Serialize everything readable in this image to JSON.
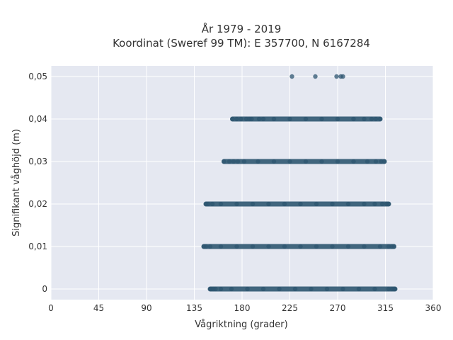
{
  "chart_data": {
    "type": "scatter",
    "title_line1": "År 1979 - 2019",
    "title_line2": "Koordinat (Sweref 99 TM): E 357700, N 6167284",
    "xlabel": "Vågriktning (grader)",
    "ylabel": "Signifikant våghöjd (m)",
    "xlim": [
      0,
      360
    ],
    "ylim": [
      -0.0025,
      0.0525
    ],
    "x_ticks": [
      0,
      45,
      90,
      135,
      180,
      225,
      270,
      315,
      360
    ],
    "x_tick_labels": [
      "0",
      "45",
      "90",
      "135",
      "180",
      "225",
      "270",
      "315",
      "360"
    ],
    "y_ticks": [
      0,
      0.01,
      0.02,
      0.03,
      0.04,
      0.05
    ],
    "y_tick_labels": [
      "0",
      "0,01",
      "0,02",
      "0,03",
      "0,04",
      "0,05"
    ],
    "grid": true,
    "legend": "none",
    "colors": {
      "background": "#e5e8f1",
      "grid": "#ffffff",
      "marker": "#2e5670"
    },
    "bands": [
      {
        "y": 0,
        "x_min": 150,
        "x_max": 324,
        "dense": true,
        "points": [
          150,
          151,
          153,
          155,
          160,
          170,
          185,
          200,
          215,
          230,
          245,
          260,
          275,
          290,
          305,
          318,
          321,
          323,
          324
        ]
      },
      {
        "y": 0.01,
        "x_min": 144,
        "x_max": 323,
        "dense": true,
        "points": [
          144,
          146,
          150,
          160,
          175,
          190,
          205,
          220,
          235,
          250,
          265,
          280,
          295,
          310,
          318,
          321,
          323
        ]
      },
      {
        "y": 0.02,
        "x_min": 146,
        "x_max": 318,
        "dense": true,
        "points": [
          146,
          148,
          152,
          160,
          175,
          190,
          205,
          220,
          235,
          250,
          265,
          280,
          295,
          305,
          312,
          316,
          318
        ]
      },
      {
        "y": 0.03,
        "x_min": 163,
        "x_max": 314,
        "dense": true,
        "points": [
          163,
          168,
          172,
          176,
          182,
          195,
          210,
          225,
          240,
          255,
          270,
          285,
          298,
          306,
          311,
          314
        ]
      },
      {
        "y": 0.04,
        "x_min": 171,
        "x_max": 310,
        "dense": true,
        "points": [
          171,
          175,
          179,
          184,
          187,
          189,
          196,
          200,
          210,
          225,
          240,
          255,
          270,
          285,
          295,
          302,
          306,
          310
        ]
      },
      {
        "y": 0.05,
        "x_min": 227,
        "x_max": 275,
        "dense": false,
        "points": [
          227,
          249,
          269,
          273,
          275
        ]
      }
    ]
  }
}
